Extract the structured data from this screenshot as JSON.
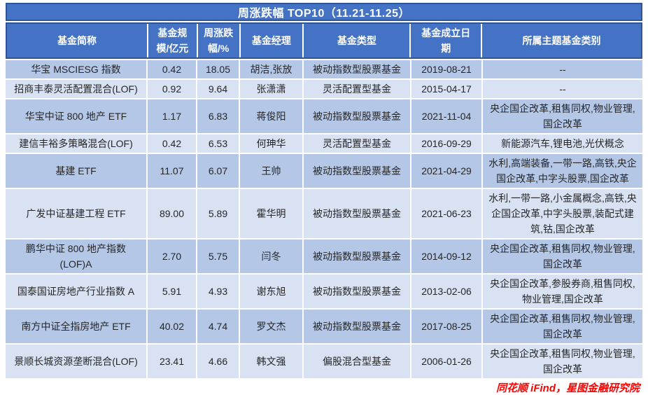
{
  "chart_data": {
    "type": "table",
    "title": "周涨跌幅 TOP10（11.21-11.25）",
    "columns": [
      "基金简称",
      "基金规模/亿元",
      "周涨跌幅/%",
      "基金经理",
      "基金类型",
      "基金成立日期",
      "所属主题基金类别"
    ],
    "rows": [
      [
        "华宝 MSCIESG 指数",
        "0.42",
        "18.05",
        "胡洁,张放",
        "被动指数型股票基金",
        "2019-08-21",
        "--"
      ],
      [
        "招商丰泰灵活配置混合(LOF)",
        "0.92",
        "9.64",
        "张潇潇",
        "灵活配置型基金",
        "2015-04-17",
        "--"
      ],
      [
        "华宝中证 800 地产 ETF",
        "1.17",
        "6.83",
        "蒋俊阳",
        "被动指数型股票基金",
        "2021-11-04",
        "央企国企改革,租售同权,物业管理,国企改革"
      ],
      [
        "建信丰裕多策略混合(LOF)",
        "0.42",
        "6.53",
        "何珅华",
        "灵活配置型基金",
        "2016-09-29",
        "新能源汽车,锂电池,光伏概念"
      ],
      [
        "基建 ETF",
        "11.07",
        "6.07",
        "王帅",
        "被动指数型股票基金",
        "2021-04-29",
        "水利,高端装备,一带一路,高铁,央企国企改革,中字头股票,国企改革"
      ],
      [
        "广发中证基建工程 ETF",
        "89.00",
        "5.89",
        "霍华明",
        "被动指数型股票基金",
        "2021-06-23",
        "水利,一带一路,小金属概念,高铁,央企国企改革,中字头股票,装配式建筑,钴,国企改革"
      ],
      [
        "鹏华中证 800 地产指数 (LOF)A",
        "2.70",
        "5.75",
        "闫冬",
        "被动指数型股票基金",
        "2014-09-12",
        "央企国企改革,租售同权,物业管理,国企改革"
      ],
      [
        "国泰国证房地产行业指数 A",
        "5.91",
        "4.93",
        "谢东旭",
        "被动指数型股票基金",
        "2013-02-06",
        "央企国企改革,参股券商,租售同权,物业管理,国企改革"
      ],
      [
        "南方中证全指房地产 ETF",
        "40.02",
        "4.74",
        "罗文杰",
        "被动指数型股票基金",
        "2017-08-25",
        "央企国企改革,租售同权,物业管理,国企改革"
      ],
      [
        "景顺长城资源垄断混合(LOF)",
        "23.41",
        "4.66",
        "韩文强",
        "偏股混合型基金",
        "2006-01-26",
        "央企国企改革,租售同权,物业管理,国企改革"
      ]
    ],
    "layout_hints": {
      "banded_rows": true,
      "gridlines": "white",
      "header_position": "top"
    }
  },
  "footer": {
    "source": "同花顺 iFind，星图金融研究院"
  },
  "colors": {
    "header_bg": "#4472C4",
    "table_border": "#2F5597",
    "row_odd_bg": "#B4C7E7",
    "row_even_bg": "#D9E2F3",
    "header_text": "#FFFFFF",
    "body_text": "#262626",
    "source_text": "#FE0000"
  }
}
